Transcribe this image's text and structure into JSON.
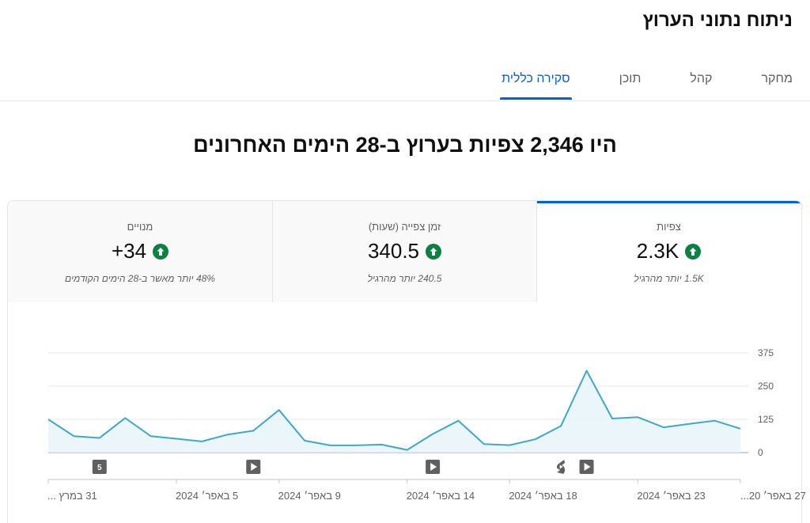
{
  "page": {
    "title": "ניתוח נתוני הערוץ"
  },
  "tabs": [
    {
      "label": "סקירה כללית",
      "active": true
    },
    {
      "label": "תוכן",
      "active": false
    },
    {
      "label": "קהל",
      "active": false
    },
    {
      "label": "מחקר",
      "active": false
    }
  ],
  "headline": {
    "prefix": "היו",
    "number": "2,346",
    "suffix": "צפיות בערוץ ב-28 הימים האחרונים"
  },
  "metrics": [
    {
      "label": "צפיות",
      "value": "2.3K",
      "trend": "up",
      "note": "1.5K יותר מהרגיל",
      "selected": true
    },
    {
      "label": "זמן צפייה (שעות)",
      "value": "340.5",
      "trend": "up",
      "note": "240.5 יותר מהרגיל",
      "selected": false
    },
    {
      "label": "מנויים",
      "value": "+34",
      "trend": "up",
      "note": "48% יותר מאשר ב-28 הימים הקודמים",
      "selected": false
    }
  ],
  "colors": {
    "accent": "#065fd4",
    "line": "#3fa7c9",
    "area": "#e6f4fa",
    "trend_up": "#0b8043",
    "marker": "#606060"
  },
  "chart_data": {
    "type": "area",
    "y_ticks": [
      "375",
      "250",
      "125",
      "0"
    ],
    "ylim": [
      0,
      375
    ],
    "x_ticks": [
      "31 במרץ ...",
      "5 באפר׳ 2024",
      "9 באפר׳ 2024",
      "14 באפר׳ 2024",
      "18 באפר׳ 2024",
      "23 באפר׳ 2024",
      "27 באפר׳ 20..."
    ],
    "series": [
      {
        "values": [
          125,
          62,
          55,
          130,
          62,
          52,
          42,
          68,
          82,
          160,
          45,
          27,
          27,
          30,
          10,
          70,
          120,
          32,
          28,
          50,
          100,
          308,
          128,
          133,
          95,
          108,
          120,
          90
        ]
      }
    ],
    "markers": [
      {
        "day": 3,
        "kind": "text",
        "label": "5"
      },
      {
        "day": 9,
        "kind": "video-icon"
      },
      {
        "day": 16,
        "kind": "video-icon"
      },
      {
        "day": 21,
        "kind": "shorts-icon"
      },
      {
        "day": 22,
        "kind": "video-icon"
      }
    ]
  }
}
